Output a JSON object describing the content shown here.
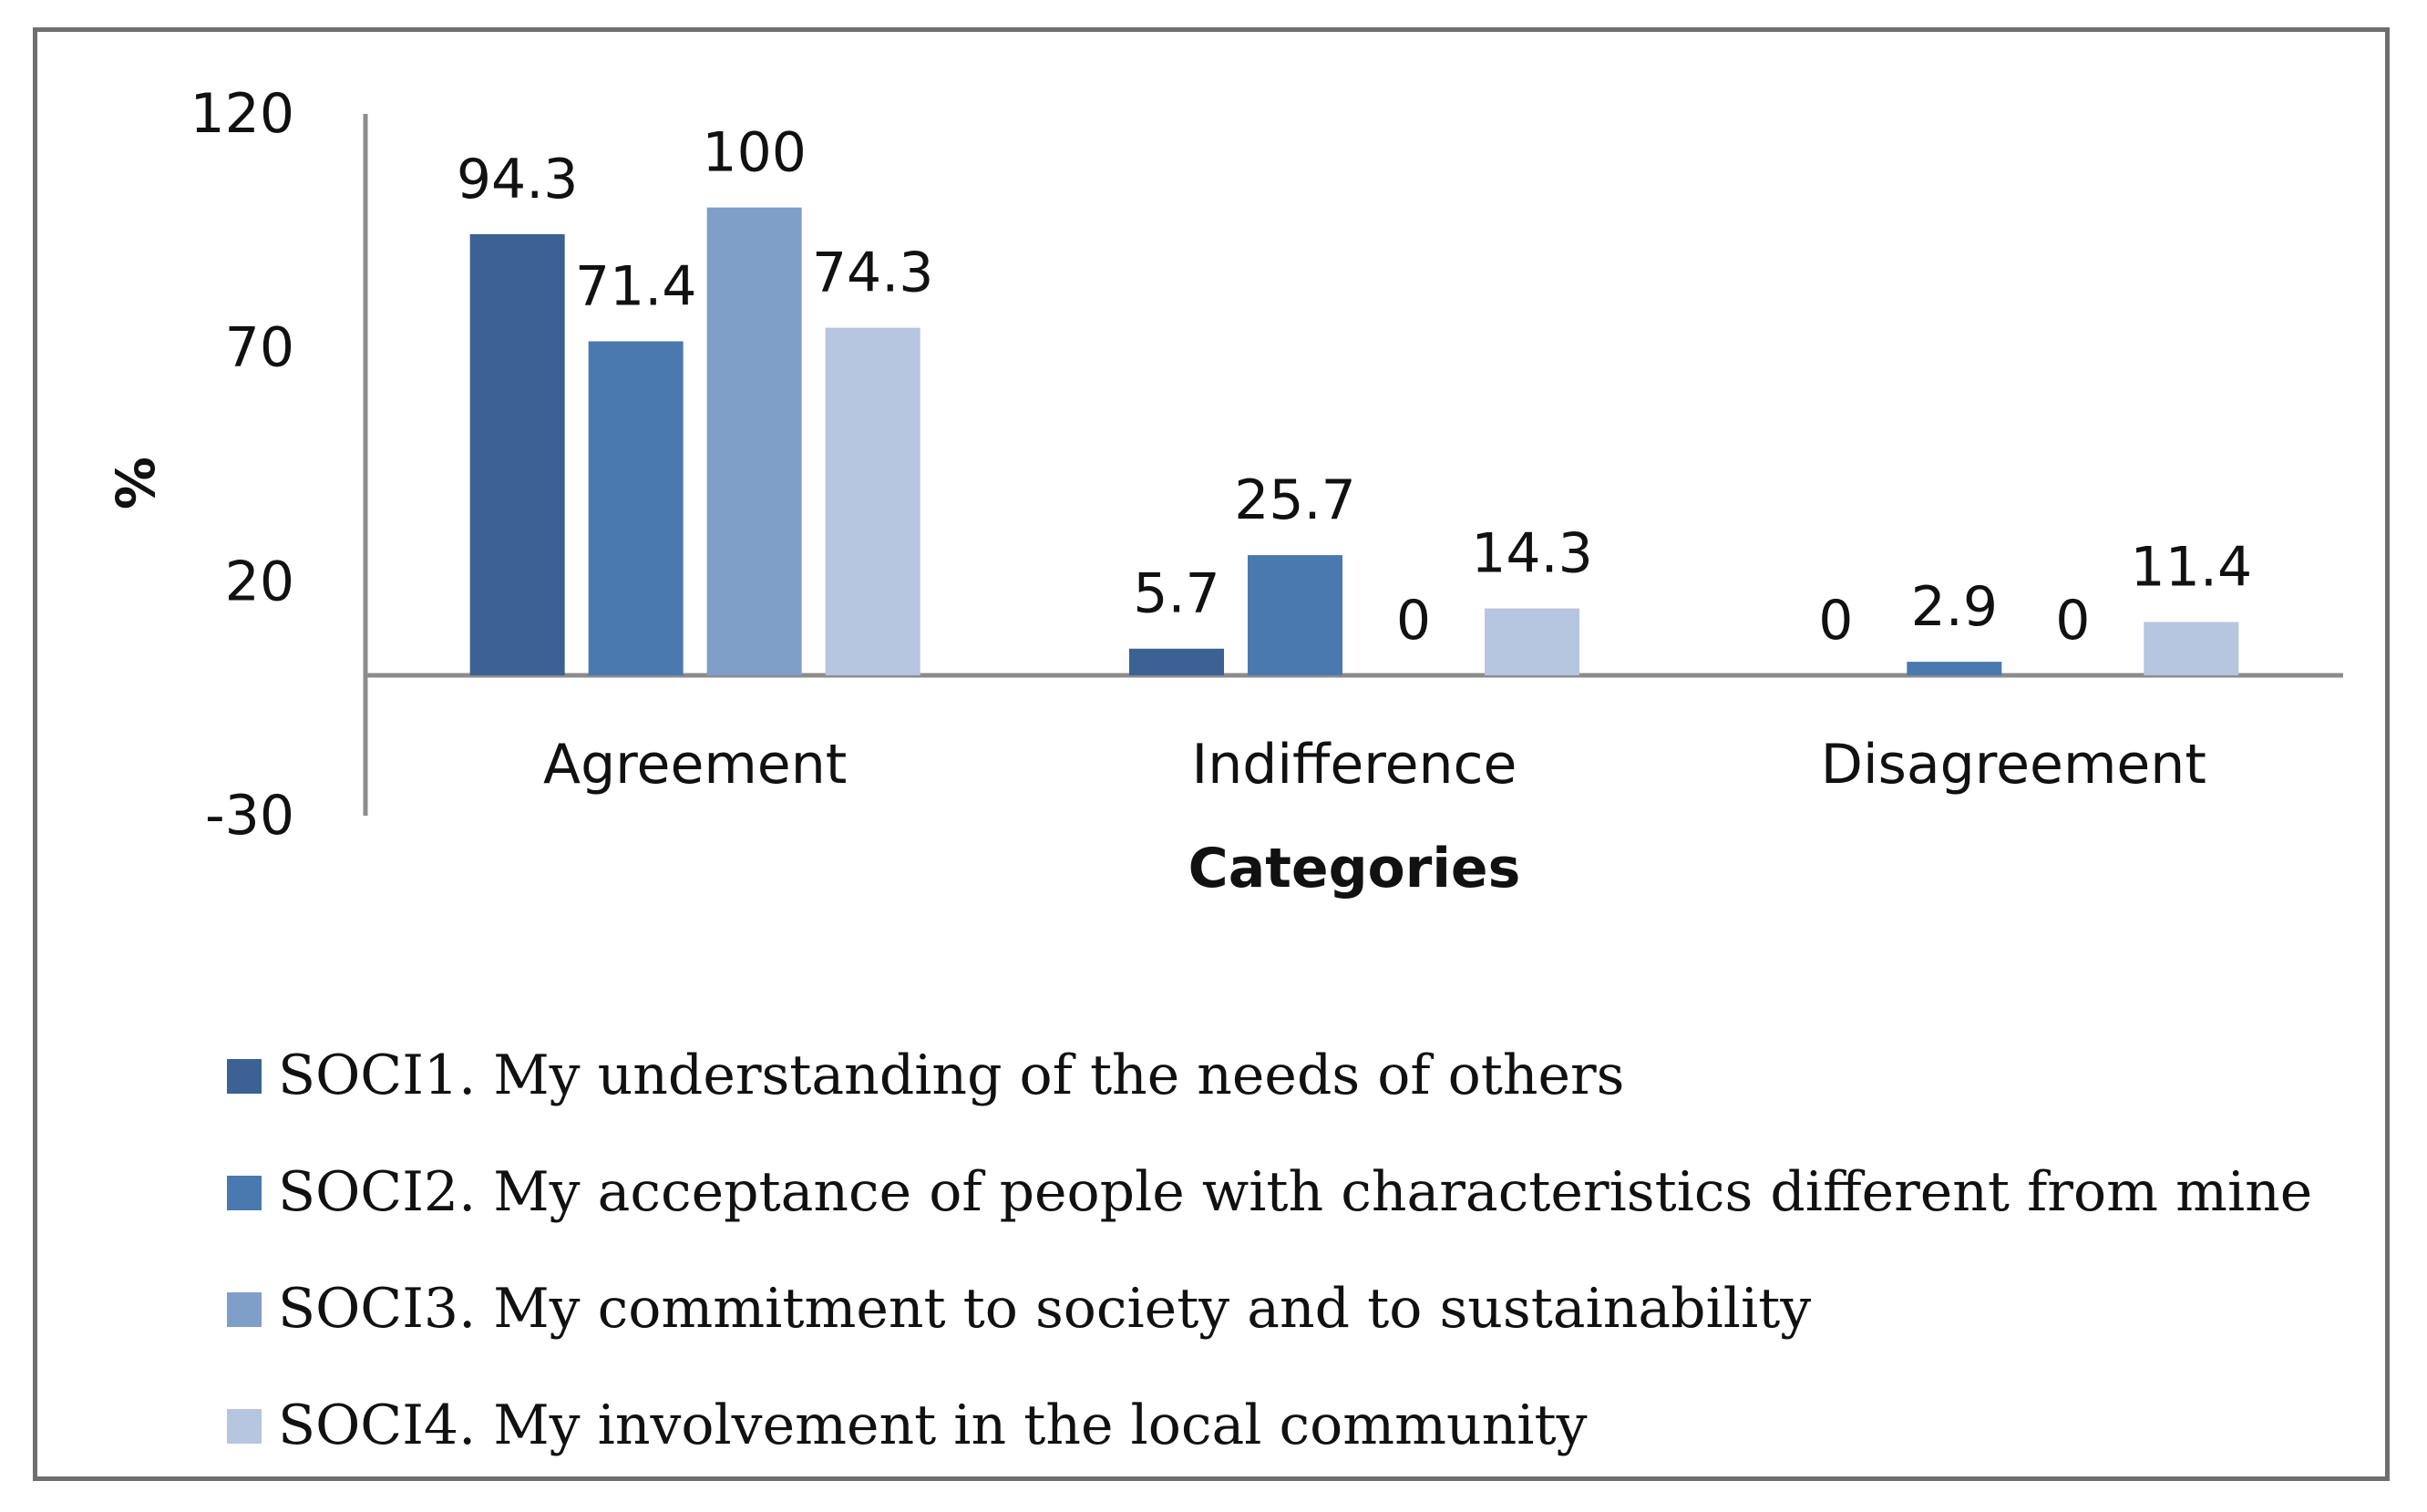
{
  "chart_data": {
    "type": "bar",
    "title": "",
    "xlabel": "Categories",
    "ylabel": "%",
    "ylim": [
      -30,
      120
    ],
    "yticks": [
      120,
      70,
      20,
      -30
    ],
    "categories": [
      "Agreement",
      "Indifference",
      "Disagreement"
    ],
    "series": [
      {
        "name": "SOCI1. My understanding of the needs of others",
        "color": "#3b6292",
        "values": [
          94.3,
          5.7,
          0
        ]
      },
      {
        "name": "SOCI2. My acceptance of people with characteristics different from mine",
        "color": "#4a79b0",
        "values": [
          71.4,
          25.7,
          2.9
        ]
      },
      {
        "name": "SOCI3. My commitment to society and to sustainability",
        "color": "#7f9ec8",
        "values": [
          100,
          0,
          0
        ]
      },
      {
        "name": "SOCI4. My involvement in the local community",
        "color": "#b6c5e0",
        "values": [
          74.3,
          14.3,
          11.4
        ]
      }
    ],
    "data_labels": [
      [
        "94.3",
        "5.7",
        "0"
      ],
      [
        "71.4",
        "25.7",
        "2.9"
      ],
      [
        "100",
        "0",
        "0"
      ],
      [
        "74.3",
        "14.3",
        "11.4"
      ]
    ],
    "legend_position": "bottom",
    "grid": false
  }
}
